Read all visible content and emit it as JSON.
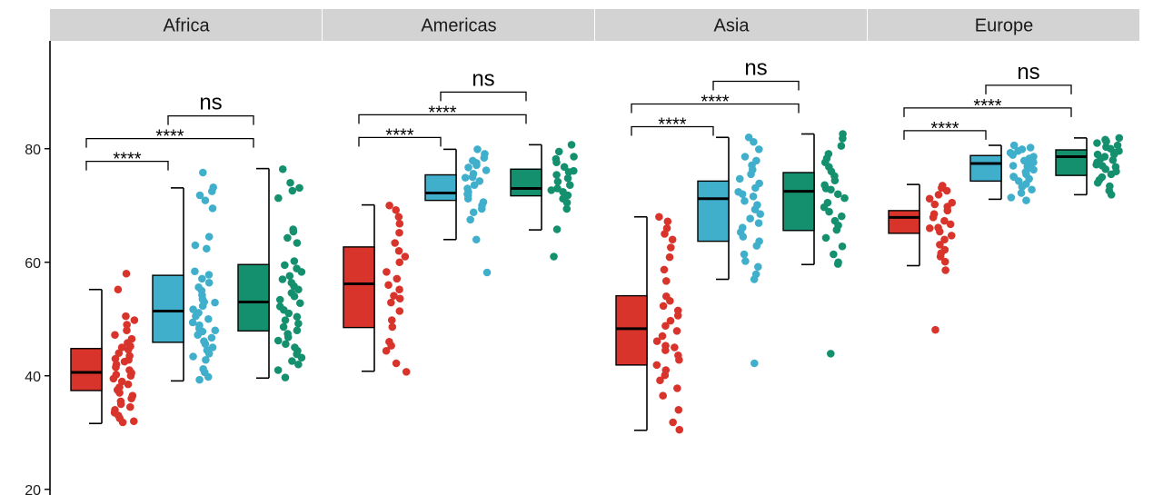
{
  "chart_data": {
    "type": "box",
    "y_ticks": [
      20,
      40,
      60,
      80
    ],
    "ylim": [
      19,
      99
    ],
    "groups": [
      {
        "name": "red",
        "color": "#d9342b"
      },
      {
        "name": "blue",
        "color": "#40afcc"
      },
      {
        "name": "green",
        "color": "#14906f"
      }
    ],
    "facets": [
      {
        "name": "Africa",
        "boxes": [
          {
            "whisker_low": 31.6,
            "q1": 37.4,
            "median": 40.6,
            "q3": 44.8,
            "whisker_high": 55.2,
            "points": [
              58.0,
              55.2,
              50.5,
              49.8,
              49.0,
              48.0,
              47.2,
              46.5,
              45.8,
              45.2,
              44.6,
              44.0,
              43.5,
              43.0,
              42.5,
              42.0,
              41.5,
              41.0,
              40.5,
              40.0,
              39.5,
              39.0,
              38.5,
              38.0,
              37.5,
              37.0,
              36.5,
              36.0,
              35.5,
              35.0,
              34.5,
              34.0,
              33.5,
              33.0,
              32.5,
              31.8,
              32.0,
              45.0,
              42.8,
              40.2
            ]
          },
          {
            "whisker_low": 39.1,
            "q1": 45.9,
            "median": 51.4,
            "q3": 57.7,
            "whisker_high": 73.1,
            "points": [
              75.8,
              73.2,
              72.5,
              71.8,
              70.9,
              69.5,
              64.5,
              63.0,
              62.4,
              58.4,
              57.8,
              57.1,
              56.4,
              55.6,
              55.0,
              54.2,
              53.5,
              52.9,
              52.3,
              51.7,
              51.1,
              50.5,
              50.0,
              49.4,
              48.9,
              48.3,
              47.8,
              47.2,
              46.7,
              46.1,
              45.6,
              45.0,
              44.5,
              43.9,
              43.4,
              42.8,
              41.2,
              40.6,
              39.8,
              39.3,
              53.0,
              48.0
            ]
          },
          {
            "whisker_low": 39.6,
            "q1": 47.9,
            "median": 53.0,
            "q3": 59.6,
            "whisker_high": 76.5,
            "points": [
              76.4,
              74.0,
              73.1,
              72.6,
              71.3,
              65.8,
              65.4,
              64.3,
              63.4,
              60.2,
              59.5,
              58.9,
              58.3,
              57.6,
              57.0,
              56.4,
              55.8,
              55.2,
              54.6,
              54.0,
              53.4,
              52.8,
              52.2,
              51.6,
              51.0,
              50.4,
              49.8,
              49.2,
              48.6,
              48.0,
              47.4,
              46.8,
              46.2,
              45.6,
              45.0,
              44.4,
              43.8,
              43.2,
              42.6,
              42.0,
              39.7,
              41.0
            ]
          }
        ],
        "comparisons": [
          {
            "from": 0,
            "to": 1,
            "label": "****",
            "level": 1
          },
          {
            "from": 0,
            "to": 2,
            "label": "****",
            "level": 2
          },
          {
            "from": 1,
            "to": 2,
            "label": "ns",
            "level": 3
          }
        ]
      },
      {
        "name": "Americas",
        "boxes": [
          {
            "whisker_low": 40.8,
            "q1": 48.5,
            "median": 56.2,
            "q3": 62.7,
            "whisker_high": 70.1,
            "points": [
              70.0,
              69.2,
              68.0,
              66.8,
              65.2,
              63.4,
              62.0,
              61.0,
              60.0,
              58.3,
              57.1,
              56.0,
              55.2,
              54.1,
              52.9,
              51.4,
              49.8,
              48.6,
              46.0,
              45.3,
              44.4,
              42.2,
              40.7,
              53.6
            ]
          },
          {
            "whisker_low": 64.0,
            "q1": 70.9,
            "median": 72.2,
            "q3": 75.4,
            "whisker_high": 79.9,
            "points": [
              79.9,
              79.1,
              78.4,
              77.9,
              77.5,
              77.1,
              76.7,
              76.2,
              75.6,
              74.9,
              74.3,
              73.6,
              73.0,
              72.4,
              71.8,
              71.2,
              70.6,
              70.0,
              69.4,
              68.8,
              67.5,
              64.0,
              58.2,
              75.0,
              72.0
            ]
          },
          {
            "whisker_low": 65.7,
            "q1": 71.7,
            "median": 73.0,
            "q3": 76.4,
            "whisker_high": 80.7,
            "points": [
              80.7,
              79.5,
              78.6,
              78.2,
              77.6,
              76.8,
              76.1,
              75.4,
              74.8,
              74.2,
              73.6,
              73.0,
              72.4,
              71.8,
              71.2,
              70.5,
              69.4,
              65.8,
              61.0,
              75.9,
              72.7
            ]
          }
        ],
        "comparisons": [
          {
            "from": 0,
            "to": 1,
            "label": "****",
            "level": 1
          },
          {
            "from": 0,
            "to": 2,
            "label": "****",
            "level": 2
          },
          {
            "from": 1,
            "to": 2,
            "label": "ns",
            "level": 3
          }
        ]
      },
      {
        "name": "Asia",
        "boxes": [
          {
            "whisker_low": 30.4,
            "q1": 41.9,
            "median": 48.3,
            "q3": 54.1,
            "whisker_high": 68.0,
            "points": [
              68.0,
              67.2,
              66.0,
              65.0,
              64.0,
              62.6,
              60.9,
              58.7,
              56.7,
              54.0,
              53.2,
              52.3,
              51.5,
              50.6,
              49.7,
              48.8,
              47.9,
              47.0,
              46.1,
              45.3,
              44.5,
              43.6,
              42.8,
              41.9,
              41.0,
              40.1,
              39.2,
              37.8,
              36.5,
              34.0,
              31.8,
              30.5,
              45.0
            ]
          },
          {
            "whisker_low": 57.0,
            "q1": 63.7,
            "median": 71.2,
            "q3": 74.3,
            "whisker_high": 82.0,
            "points": [
              82.0,
              81.2,
              79.9,
              78.6,
              77.9,
              77.1,
              76.3,
              75.5,
              74.7,
              73.9,
              73.1,
              72.4,
              71.6,
              70.8,
              70.1,
              69.3,
              68.5,
              67.7,
              66.9,
              66.1,
              65.3,
              64.5,
              63.7,
              62.9,
              61.4,
              60.2,
              59.2,
              57.9,
              57.0,
              42.2,
              72.0
            ]
          },
          {
            "whisker_low": 59.6,
            "q1": 65.6,
            "median": 72.5,
            "q3": 75.8,
            "whisker_high": 82.6,
            "points": [
              82.6,
              81.8,
              80.5,
              79.1,
              78.3,
              77.6,
              76.8,
              76.0,
              75.2,
              74.4,
              73.6,
              72.8,
              72.0,
              71.3,
              70.5,
              69.7,
              68.9,
              68.1,
              67.3,
              66.5,
              65.7,
              64.3,
              62.8,
              61.4,
              60.0,
              59.7,
              43.9,
              73.0
            ]
          }
        ],
        "comparisons": [
          {
            "from": 0,
            "to": 1,
            "label": "****",
            "level": 1
          },
          {
            "from": 0,
            "to": 2,
            "label": "****",
            "level": 2
          },
          {
            "from": 1,
            "to": 2,
            "label": "ns",
            "level": 3
          }
        ]
      },
      {
        "name": "Europe",
        "boxes": [
          {
            "whisker_low": 59.4,
            "q1": 65.1,
            "median": 67.9,
            "q3": 69.1,
            "whisker_high": 73.7,
            "points": [
              73.5,
              73.1,
              72.6,
              71.9,
              71.2,
              70.5,
              69.8,
              69.1,
              68.5,
              67.9,
              67.3,
              66.7,
              66.1,
              65.4,
              64.7,
              64.0,
              63.1,
              62.2,
              61.6,
              61.0,
              60.1,
              58.6,
              48.1,
              70.2,
              66.0
            ]
          },
          {
            "whisker_low": 71.1,
            "q1": 74.3,
            "median": 77.4,
            "q3": 78.8,
            "whisker_high": 80.6,
            "points": [
              80.6,
              80.2,
              79.9,
              79.6,
              79.3,
              78.9,
              78.6,
              78.3,
              77.9,
              77.6,
              77.3,
              76.9,
              76.6,
              76.3,
              75.9,
              75.5,
              75.1,
              74.7,
              74.3,
              73.8,
              73.3,
              72.8,
              72.2,
              71.4,
              70.9,
              77.0,
              75.0
            ]
          },
          {
            "whisker_low": 71.9,
            "q1": 75.3,
            "median": 78.6,
            "q3": 79.8,
            "whisker_high": 81.9,
            "points": [
              81.9,
              81.6,
              81.3,
              81.0,
              80.6,
              80.3,
              80.0,
              79.6,
              79.3,
              79.0,
              78.6,
              78.3,
              78.0,
              77.6,
              77.2,
              76.8,
              76.4,
              76.0,
              75.5,
              75.0,
              74.5,
              74.0,
              73.4,
              72.6,
              71.9,
              79.0,
              77.0
            ]
          }
        ],
        "comparisons": [
          {
            "from": 0,
            "to": 1,
            "label": "****",
            "level": 1
          },
          {
            "from": 0,
            "to": 2,
            "label": "****",
            "level": 2
          },
          {
            "from": 1,
            "to": 2,
            "label": "ns",
            "level": 3
          }
        ]
      }
    ]
  }
}
